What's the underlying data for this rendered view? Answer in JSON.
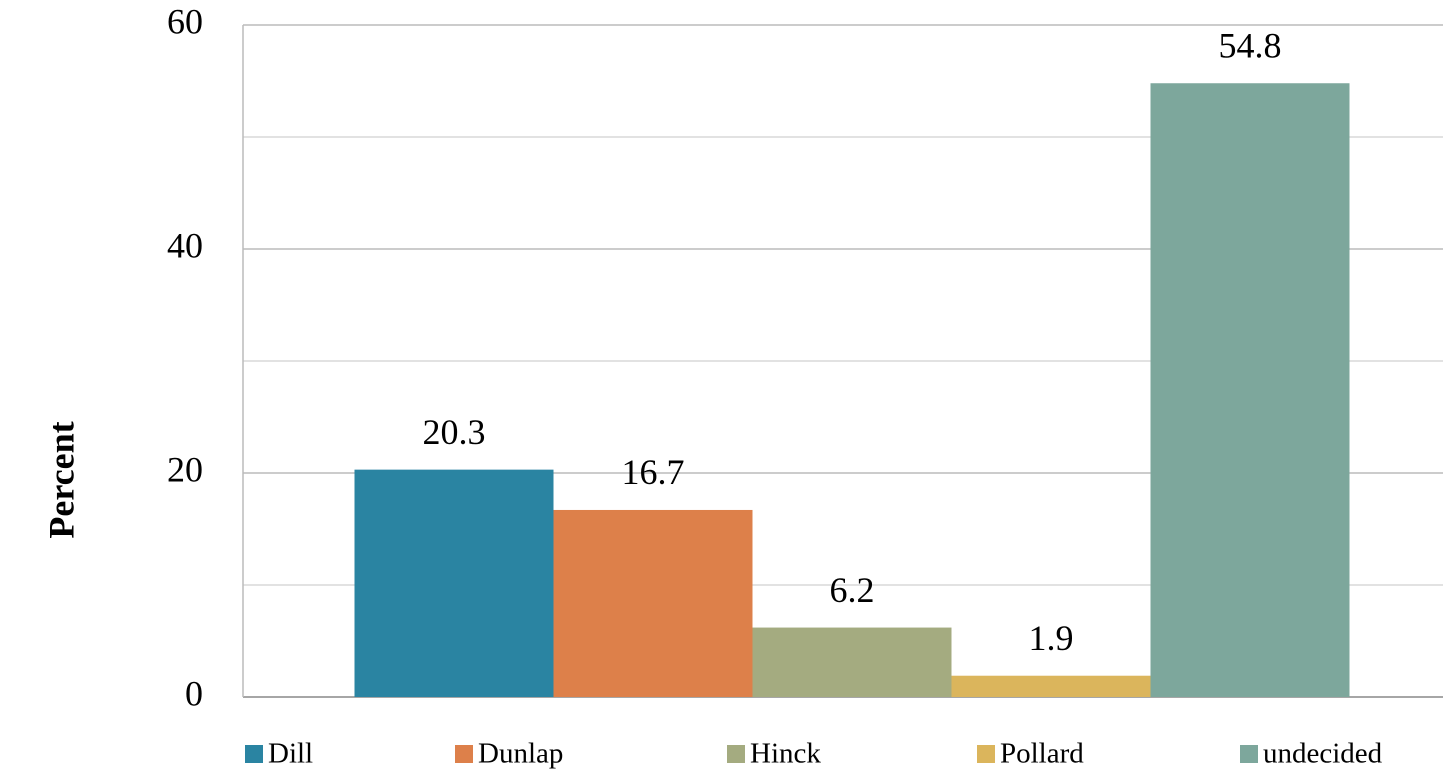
{
  "chart_data": {
    "type": "bar",
    "y_label": "Percent",
    "categories": [
      null
    ],
    "series": [
      {
        "name": "Dill",
        "color": "#2a84a2",
        "values": [
          20.3
        ]
      },
      {
        "name": "Dunlap",
        "color": "#dd804a",
        "values": [
          16.7
        ]
      },
      {
        "name": "Hinck",
        "color": "#a4ab80",
        "values": [
          6.2
        ]
      },
      {
        "name": "Pollard",
        "color": "#dbb55c",
        "values": [
          1.9
        ]
      },
      {
        "name": "undecided",
        "color": "#7da79c",
        "values": [
          54.8
        ]
      }
    ],
    "ylim": [
      0,
      60
    ],
    "yticks": [
      0,
      20,
      40,
      60
    ],
    "minor_yticks": [
      10,
      30,
      50
    ],
    "grid": true,
    "legend": "bottom",
    "data_labels": true
  }
}
